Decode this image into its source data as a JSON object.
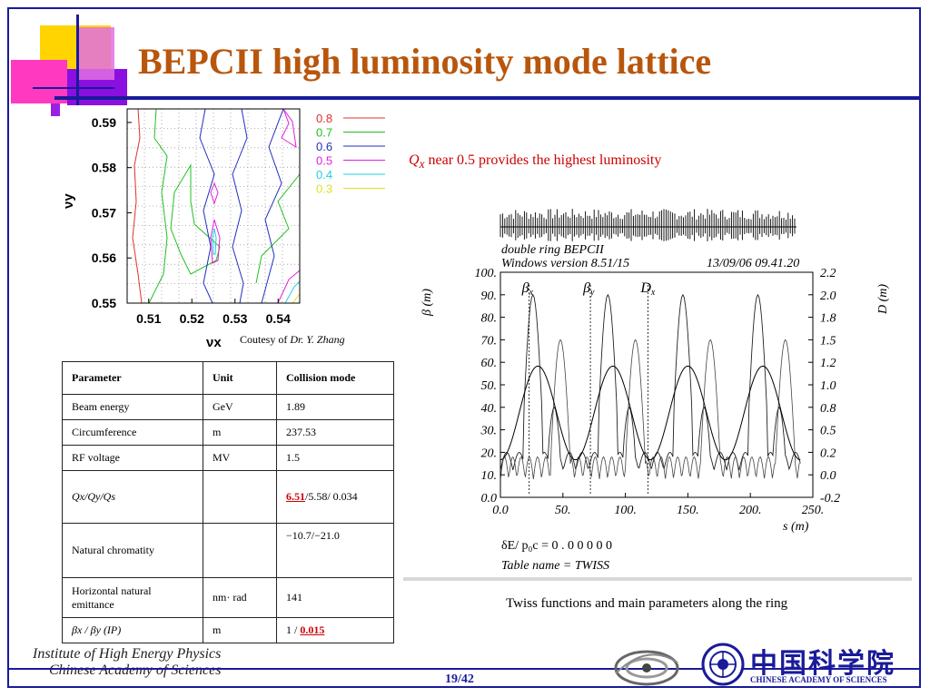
{
  "slide": {
    "title": "BEPCII high luminosity mode lattice",
    "note_sym": "Q",
    "note_sub": "x",
    "note_text": " near 0.5 provides the highest luminosity",
    "courtesy_prefix": "Coutesy of ",
    "courtesy_name": "Dr. Y. Zhang",
    "caption": "Twiss functions and main parameters along the ring",
    "page": "19/42",
    "institute_line1": "Institute of High Energy Physics",
    "institute_line2": "Chinese Academy of Sciences",
    "cas_chinese": "中国科学院",
    "cas_english": "CHINESE ACADEMY OF SCIENCES",
    "colors": {
      "title": "#b8560c",
      "accent": "#1a1a9a",
      "highlight": "#cc0000"
    }
  },
  "table": {
    "headers": [
      "Parameter",
      "Unit",
      "Collision mode"
    ],
    "rows": [
      {
        "param": "Beam energy",
        "unit": "GeV",
        "value": "1.89"
      },
      {
        "param": "Circumference",
        "unit": "m",
        "value": "237.53"
      },
      {
        "param": "RF voltage",
        "unit": "MV",
        "value": "1.5"
      },
      {
        "param": "Qx/Qy/Qs",
        "unit": "",
        "value_hl": "6.51",
        "value_rest": "/5.58/ 0.034"
      },
      {
        "param": "Natural chromatity",
        "unit": "",
        "value": "−10.7/−21.0"
      },
      {
        "param": "Horizontal natural emittance",
        "unit": "nm· rad",
        "value": "141"
      },
      {
        "param": "βx / βy (IP)",
        "unit": "m",
        "value_pre": "1 / ",
        "value_hl": "0.015"
      }
    ]
  },
  "chart_data": [
    {
      "type": "contour",
      "xlabel": "νx",
      "ylabel": "νy",
      "xlim": [
        0.505,
        0.545
      ],
      "ylim": [
        0.55,
        0.593
      ],
      "xticks": [
        "0.51",
        "0.52",
        "0.53",
        "0.54"
      ],
      "yticks": [
        "0.55",
        "0.56",
        "0.57",
        "0.58",
        "0.59"
      ],
      "grid": true,
      "legend_position": "right",
      "legend": [
        {
          "label": "0.8",
          "color": "#e03030"
        },
        {
          "label": "0.7",
          "color": "#20c020"
        },
        {
          "label": "0.6",
          "color": "#2030c0"
        },
        {
          "label": "0.5",
          "color": "#e020e0"
        },
        {
          "label": "0.4",
          "color": "#20d0e0"
        },
        {
          "label": "0.3",
          "color": "#e0e020"
        }
      ]
    },
    {
      "type": "line",
      "header_line1": "double ring BEPCII",
      "header_line2": "Windows version 8.51/15",
      "header_date": "13/09/06  09.41.20",
      "xlabel": "s (m)",
      "ylabel_left": "β  (m)",
      "ylabel_right": "D (m)",
      "xlim": [
        0,
        250
      ],
      "ylim_left": [
        0,
        100
      ],
      "ylim_right": [
        -0.2,
        2.2
      ],
      "xticks": [
        "0.0",
        "50.",
        "100.",
        "150.",
        "200.",
        "250."
      ],
      "yticks_left": [
        "0.0",
        "10.",
        "20.",
        "30.",
        "40.",
        "50.",
        "60.",
        "70.",
        "80.",
        "90.",
        "100."
      ],
      "yticks_right": [
        "-0.2",
        "0.0",
        "0.2",
        "0.5",
        "0.8",
        "1.0",
        "1.2",
        "1.5",
        "1.8",
        "2.0",
        "2.2"
      ],
      "series": [
        {
          "name": "βx",
          "name_sym": "β",
          "name_sub": "x"
        },
        {
          "name": "βy",
          "name_sym": "β",
          "name_sub": "y"
        },
        {
          "name": "Dx",
          "name_sym": "D",
          "name_sub": "x"
        }
      ],
      "footer_line1": "δE/ p₀c   =     0 . 0 0 0 0 0",
      "footer_line2": "Table name = TWISS"
    }
  ]
}
